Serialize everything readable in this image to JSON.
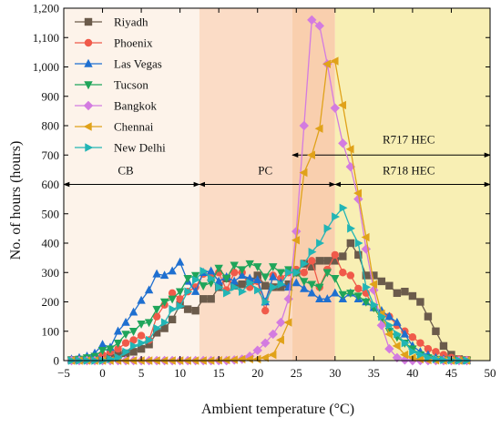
{
  "chart_data": {
    "type": "line",
    "xlabel": "Ambient temperature (°C)",
    "ylabel": "No. of hours (hours)",
    "xlim": [
      -5,
      50
    ],
    "ylim": [
      0,
      1200
    ],
    "x_ticks": [
      "−5",
      "0",
      "5",
      "10",
      "15",
      "20",
      "25",
      "30",
      "35",
      "40",
      "45",
      "50"
    ],
    "y_ticks": [
      "0",
      "100",
      "200",
      "300",
      "400",
      "500",
      "600",
      "700",
      "800",
      "900",
      "1,000",
      "1,100",
      "1,200"
    ],
    "legend_position": "top-left",
    "regions": [
      {
        "x0": -5,
        "x1": 12.5,
        "color": "#fdf3ea"
      },
      {
        "x0": 12.5,
        "x1": 24.5,
        "color": "#fbdcc6"
      },
      {
        "x0": 24.5,
        "x1": 30,
        "color": "#f9cfae"
      },
      {
        "x0": 30,
        "x1": 50,
        "color": "#f8efb4"
      }
    ],
    "annotations": [
      {
        "label": "CB",
        "x0": -5,
        "x1": 12.5,
        "y": 600,
        "label_x": 3,
        "label_y": 650
      },
      {
        "label": "PC",
        "x0": 12.5,
        "x1": 30,
        "y": 600,
        "label_x": 21,
        "label_y": 650
      },
      {
        "label": "R718 HEC",
        "x0": 30,
        "x1": 50,
        "y": 600,
        "label_x": 39.5,
        "label_y": 650
      },
      {
        "label": "R717 HEC",
        "x0": 24.5,
        "x1": 50,
        "y": 700,
        "label_x": 39.5,
        "label_y": 755
      }
    ],
    "series": [
      {
        "name": "Riyadh",
        "color": "#6b5b4b",
        "marker": "square",
        "x": [
          -4,
          -3,
          -2,
          -1,
          0,
          1,
          2,
          3,
          4,
          5,
          6,
          7,
          8,
          9,
          10,
          11,
          12,
          13,
          14,
          15,
          16,
          17,
          18,
          19,
          20,
          21,
          22,
          23,
          24,
          25,
          26,
          27,
          28,
          29,
          30,
          31,
          32,
          33,
          34,
          35,
          36,
          37,
          38,
          39,
          40,
          41,
          42,
          43,
          44,
          45,
          46,
          47
        ],
        "y": [
          2,
          3,
          3,
          5,
          5,
          10,
          20,
          25,
          30,
          40,
          55,
          95,
          110,
          140,
          190,
          175,
          170,
          210,
          210,
          250,
          280,
          255,
          260,
          270,
          290,
          255,
          250,
          250,
          260,
          300,
          330,
          320,
          340,
          340,
          340,
          355,
          400,
          360,
          290,
          290,
          270,
          255,
          230,
          235,
          220,
          200,
          150,
          100,
          50,
          20,
          5,
          2
        ]
      },
      {
        "name": "Phoenix",
        "color": "#f05a4a",
        "marker": "circle",
        "x": [
          -4,
          -3,
          -2,
          -1,
          0,
          1,
          2,
          3,
          4,
          5,
          6,
          7,
          8,
          9,
          10,
          11,
          12,
          13,
          14,
          15,
          16,
          17,
          18,
          19,
          20,
          21,
          22,
          23,
          24,
          25,
          26,
          27,
          28,
          29,
          30,
          31,
          32,
          33,
          34,
          35,
          36,
          37,
          38,
          39,
          40,
          41,
          42,
          43,
          44,
          45,
          46,
          47
        ],
        "y": [
          3,
          5,
          8,
          10,
          20,
          30,
          40,
          60,
          70,
          85,
          70,
          150,
          190,
          230,
          210,
          235,
          250,
          295,
          290,
          300,
          240,
          300,
          300,
          250,
          270,
          170,
          290,
          280,
          300,
          310,
          300,
          340,
          250,
          310,
          360,
          300,
          290,
          245,
          230,
          180,
          160,
          150,
          120,
          100,
          80,
          60,
          40,
          30,
          20,
          10,
          5,
          2
        ]
      },
      {
        "name": "Las Vegas",
        "color": "#1e6fd0",
        "marker": "triangle-up",
        "x": [
          -4,
          -3,
          -2,
          -1,
          0,
          1,
          2,
          3,
          4,
          5,
          6,
          7,
          8,
          9,
          10,
          11,
          12,
          13,
          14,
          15,
          16,
          17,
          18,
          19,
          20,
          21,
          22,
          23,
          24,
          25,
          26,
          27,
          28,
          29,
          30,
          31,
          32,
          33,
          34,
          35,
          36,
          37,
          38,
          39,
          40,
          41,
          42,
          43,
          44,
          45,
          46,
          47
        ],
        "y": [
          5,
          10,
          15,
          25,
          55,
          45,
          100,
          130,
          165,
          205,
          240,
          295,
          290,
          305,
          335,
          270,
          235,
          300,
          305,
          270,
          285,
          270,
          290,
          280,
          275,
          200,
          285,
          265,
          250,
          265,
          245,
          230,
          210,
          210,
          230,
          210,
          230,
          210,
          200,
          180,
          170,
          150,
          130,
          90,
          50,
          30,
          20,
          10,
          5,
          2,
          1,
          0
        ]
      },
      {
        "name": "Tucson",
        "color": "#1fa55a",
        "marker": "triangle-down",
        "x": [
          -4,
          -3,
          -2,
          -1,
          0,
          1,
          2,
          3,
          4,
          5,
          6,
          7,
          8,
          9,
          10,
          11,
          12,
          13,
          14,
          15,
          16,
          17,
          18,
          19,
          20,
          21,
          22,
          23,
          24,
          25,
          26,
          27,
          28,
          29,
          30,
          31,
          32,
          33,
          34,
          35,
          36,
          37,
          38,
          39,
          40,
          41,
          42,
          43,
          44,
          45,
          46,
          47
        ],
        "y": [
          2,
          5,
          10,
          15,
          35,
          40,
          60,
          90,
          100,
          125,
          130,
          175,
          200,
          210,
          235,
          280,
          290,
          255,
          265,
          315,
          280,
          325,
          310,
          330,
          320,
          285,
          320,
          300,
          310,
          300,
          270,
          260,
          250,
          300,
          280,
          225,
          230,
          220,
          200,
          180,
          140,
          100,
          80,
          60,
          40,
          20,
          10,
          5,
          3,
          2,
          1,
          0
        ]
      },
      {
        "name": "Bangkok",
        "color": "#d37be0",
        "marker": "diamond",
        "x": [
          -4,
          -3,
          -2,
          -1,
          0,
          1,
          2,
          3,
          4,
          5,
          6,
          7,
          8,
          9,
          10,
          11,
          12,
          13,
          14,
          15,
          16,
          17,
          18,
          19,
          20,
          21,
          22,
          23,
          24,
          25,
          26,
          27,
          28,
          29,
          30,
          31,
          32,
          33,
          34,
          35,
          36,
          37,
          38,
          39,
          40,
          41,
          42,
          43,
          44,
          45,
          46,
          47
        ],
        "y": [
          0,
          0,
          0,
          0,
          0,
          0,
          0,
          0,
          0,
          0,
          0,
          0,
          0,
          0,
          0,
          0,
          0,
          0,
          0,
          0,
          0,
          2,
          5,
          15,
          35,
          60,
          90,
          130,
          210,
          440,
          800,
          1160,
          1140,
          1010,
          860,
          740,
          660,
          550,
          380,
          240,
          120,
          40,
          10,
          2,
          0,
          0,
          0,
          0,
          0,
          0,
          0,
          0
        ]
      },
      {
        "name": "Chennai",
        "color": "#e0a21a",
        "marker": "triangle-left",
        "x": [
          -4,
          -3,
          -2,
          -1,
          0,
          1,
          2,
          3,
          4,
          5,
          6,
          7,
          8,
          9,
          10,
          11,
          12,
          13,
          14,
          15,
          16,
          17,
          18,
          19,
          20,
          21,
          22,
          23,
          24,
          25,
          26,
          27,
          28,
          29,
          30,
          31,
          32,
          33,
          34,
          35,
          36,
          37,
          38,
          39,
          40,
          41,
          42,
          43,
          44,
          45,
          46,
          47
        ],
        "y": [
          0,
          0,
          0,
          0,
          0,
          0,
          0,
          0,
          0,
          0,
          0,
          0,
          0,
          0,
          0,
          0,
          0,
          0,
          0,
          1,
          2,
          3,
          5,
          5,
          5,
          10,
          20,
          70,
          130,
          410,
          640,
          700,
          790,
          1010,
          1020,
          870,
          720,
          570,
          420,
          260,
          160,
          90,
          50,
          20,
          10,
          5,
          2,
          1,
          0,
          0,
          0,
          0
        ]
      },
      {
        "name": "New Delhi",
        "color": "#22b5b5",
        "marker": "triangle-right",
        "x": [
          -4,
          -3,
          -2,
          -1,
          0,
          1,
          2,
          3,
          4,
          5,
          6,
          7,
          8,
          9,
          10,
          11,
          12,
          13,
          14,
          15,
          16,
          17,
          18,
          19,
          20,
          21,
          22,
          23,
          24,
          25,
          26,
          27,
          28,
          29,
          30,
          31,
          32,
          33,
          34,
          35,
          36,
          37,
          38,
          39,
          40,
          41,
          42,
          43,
          44,
          45,
          46,
          47
        ],
        "y": [
          0,
          0,
          0,
          0,
          0,
          5,
          10,
          30,
          50,
          60,
          70,
          110,
          130,
          175,
          185,
          235,
          275,
          305,
          280,
          250,
          230,
          250,
          235,
          265,
          240,
          200,
          250,
          260,
          300,
          300,
          330,
          370,
          400,
          450,
          490,
          520,
          450,
          400,
          250,
          190,
          150,
          120,
          90,
          60,
          30,
          20,
          10,
          5,
          2,
          1,
          0,
          0
        ]
      }
    ]
  }
}
